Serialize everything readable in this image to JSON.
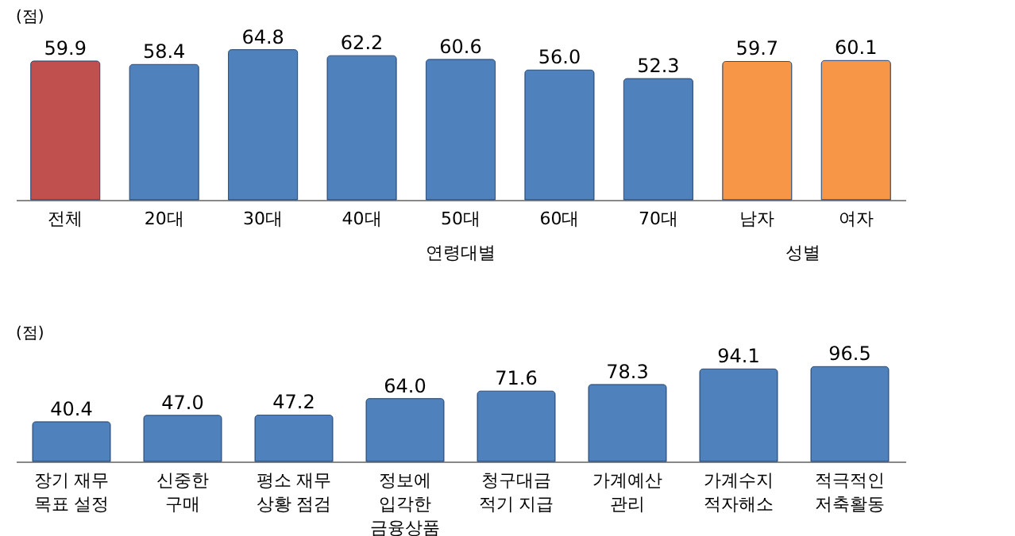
{
  "chart_data": [
    {
      "type": "bar",
      "ylabel": "(점)",
      "categories": [
        "전체",
        "20대",
        "30대",
        "40대",
        "50대",
        "60대",
        "70대",
        "남자",
        "여자"
      ],
      "values": [
        59.9,
        58.4,
        64.8,
        62.2,
        60.6,
        56.0,
        52.3,
        59.7,
        60.1
      ],
      "value_labels": [
        "59.9",
        "58.4",
        "64.8",
        "62.2",
        "60.6",
        "56.0",
        "52.3",
        "59.7",
        "60.1"
      ],
      "colors": [
        "#c0504d",
        "#4f81bd",
        "#4f81bd",
        "#4f81bd",
        "#4f81bd",
        "#4f81bd",
        "#4f81bd",
        "#f79646",
        "#f79646"
      ],
      "annotations": [
        "연령대별",
        "성별"
      ]
    },
    {
      "type": "bar",
      "ylabel": "(점)",
      "categories": [
        "장기 재무\n목표 설정",
        "신중한\n구매",
        "평소 재무\n상황 점검",
        "정보에\n입각한\n금융상품",
        "청구대금\n적기 지급",
        "가계예산\n관리",
        "가계수지\n적자해소",
        "적극적인\n저축활동"
      ],
      "values": [
        40.4,
        47.0,
        47.2,
        64.0,
        71.6,
        78.3,
        94.1,
        96.5
      ],
      "value_labels": [
        "40.4",
        "47.0",
        "47.2",
        "64.0",
        "71.6",
        "78.3",
        "94.1",
        "96.5"
      ],
      "color": "#4f81bd"
    }
  ]
}
